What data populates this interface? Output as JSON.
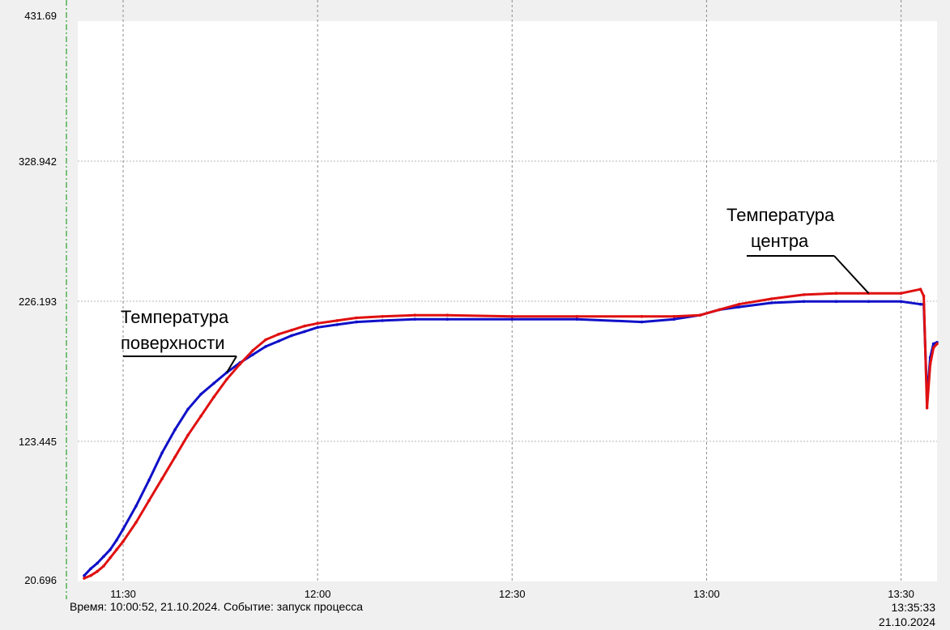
{
  "status": {
    "event_text": "Время: 10:00:52, 21.10.2024. Событие: запуск процесса",
    "end_time": "13:35:33",
    "end_date": "21.10.2024"
  },
  "colors": {
    "surface": "#1010c8",
    "center": "#e01010",
    "grid": "#b4b4b4",
    "plot_bg": "#ffffff",
    "marker_line": "#2aa02a"
  },
  "chart_data": {
    "type": "line",
    "title": "",
    "xlabel": "",
    "ylabel": "",
    "grid": true,
    "xlim": [
      "11:23",
      "13:35:33"
    ],
    "ylim": [
      20.696,
      431.69
    ],
    "y_ticks": [
      "431.69",
      "328.942",
      "226.193",
      "123.445",
      "20.696"
    ],
    "x_ticks": [
      "11:30",
      "12:00",
      "12:30",
      "13:00",
      "13:30"
    ],
    "annotations": [
      {
        "lines": [
          "Температура",
          "поверхности"
        ],
        "series": "surface"
      },
      {
        "lines": [
          "Температура",
          "центра"
        ],
        "series": "center"
      }
    ],
    "series": [
      {
        "key": "surface",
        "x": [
          "11:24",
          "11:25",
          "11:26",
          "11:27",
          "11:28",
          "11:29",
          "11:30",
          "11:32",
          "11:34",
          "11:36",
          "11:38",
          "11:40",
          "11:42",
          "11:44",
          "11:46",
          "11:48",
          "11:50",
          "11:52",
          "11:54",
          "11:56",
          "11:58",
          "12:00",
          "12:03",
          "12:06",
          "12:10",
          "12:15",
          "12:20",
          "12:30",
          "12:40",
          "12:50",
          "12:55",
          "12:59",
          "13:02",
          "13:05",
          "13:10",
          "13:15",
          "13:20",
          "13:25",
          "13:30",
          "13:33",
          "13:33:30",
          "13:34",
          "13:34:30",
          "13:35",
          "13:35:33"
        ],
        "values": [
          25,
          30,
          34,
          39,
          44,
          51,
          59,
          76,
          95,
          115,
          132,
          147,
          158,
          166,
          174,
          181,
          187,
          193,
          197,
          201,
          204,
          207,
          209,
          211,
          212,
          213,
          213,
          213,
          213,
          211,
          213,
          216,
          220,
          222,
          225,
          226,
          226,
          226,
          226,
          224,
          224,
          155,
          185,
          195,
          196
        ]
      },
      {
        "key": "center",
        "x": [
          "11:24",
          "11:25",
          "11:26",
          "11:27",
          "11:28",
          "11:29",
          "11:30",
          "11:32",
          "11:34",
          "11:36",
          "11:38",
          "11:40",
          "11:42",
          "11:44",
          "11:46",
          "11:48",
          "11:50",
          "11:52",
          "11:54",
          "11:56",
          "11:58",
          "12:00",
          "12:03",
          "12:06",
          "12:10",
          "12:15",
          "12:20",
          "12:30",
          "12:40",
          "12:50",
          "12:55",
          "12:59",
          "13:02",
          "13:05",
          "13:10",
          "13:15",
          "13:20",
          "13:25",
          "13:30",
          "13:33",
          "13:33:30",
          "13:34",
          "13:34:30",
          "13:35",
          "13:35:33"
        ],
        "values": [
          23,
          25,
          28,
          32,
          38,
          44,
          50,
          64,
          80,
          96,
          112,
          128,
          142,
          156,
          169,
          180,
          190,
          198,
          202,
          205,
          208,
          210,
          212,
          214,
          215,
          216,
          216,
          215,
          215,
          215,
          215,
          216,
          220,
          224,
          228,
          231,
          232,
          232,
          232,
          235,
          230,
          148,
          180,
          192,
          195
        ]
      }
    ]
  }
}
